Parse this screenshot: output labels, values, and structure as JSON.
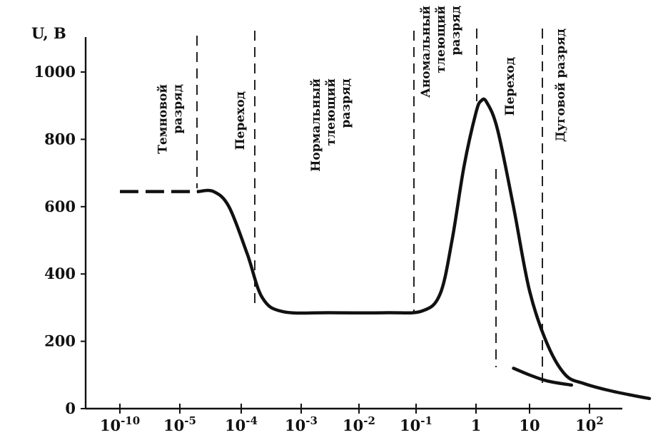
{
  "chart_data": {
    "type": "line",
    "title": "",
    "ylabel": "U, В",
    "xlabel": "",
    "ylim": [
      0,
      1000
    ],
    "xscale": "log",
    "grid": false,
    "legend": "none",
    "y_ticks": [
      {
        "value": 0,
        "label": "0"
      },
      {
        "value": 200,
        "label": "200"
      },
      {
        "value": 400,
        "label": "400"
      },
      {
        "value": 600,
        "label": "600"
      },
      {
        "value": 800,
        "label": "800"
      },
      {
        "value": 1000,
        "label": "1000"
      }
    ],
    "x_ticks": [
      {
        "base": "10",
        "exp": "-10"
      },
      {
        "base": "10",
        "exp": "-5"
      },
      {
        "base": "10",
        "exp": "-4"
      },
      {
        "base": "10",
        "exp": "-3"
      },
      {
        "base": "10",
        "exp": "-2"
      },
      {
        "base": "10",
        "exp": "-1"
      },
      {
        "base": "1",
        "exp": ""
      },
      {
        "base": "10",
        "exp": ""
      },
      {
        "base": "10",
        "exp": "2"
      }
    ],
    "regions": [
      {
        "lines": [
          "Темновой",
          "разряд"
        ]
      },
      {
        "lines": [
          "Переход"
        ]
      },
      {
        "lines": [
          "Нормальный",
          "тлеющий",
          "разряд"
        ]
      },
      {
        "lines": [
          "Аномальный",
          "тлеющий",
          "разряд"
        ]
      },
      {
        "lines": [
          "Переход"
        ]
      },
      {
        "lines": [
          "Дуговой разряд"
        ]
      }
    ],
    "series": [
      {
        "style": "dashed",
        "points": [
          [
            0,
            645
          ],
          [
            0.6,
            645
          ],
          [
            1.3,
            645
          ]
        ]
      },
      {
        "style": "solid",
        "points": [
          [
            1.3,
            645
          ],
          [
            1.55,
            645
          ],
          [
            1.8,
            600
          ],
          [
            2.1,
            460
          ],
          [
            2.35,
            330
          ],
          [
            2.7,
            288
          ],
          [
            3.5,
            285
          ],
          [
            4.5,
            285
          ],
          [
            5.1,
            290
          ],
          [
            5.4,
            340
          ],
          [
            5.6,
            500
          ],
          [
            5.8,
            720
          ],
          [
            6.0,
            880
          ],
          [
            6.1,
            915
          ],
          [
            6.2,
            910
          ],
          [
            6.4,
            830
          ],
          [
            6.7,
            600
          ],
          [
            7.0,
            350
          ],
          [
            7.3,
            190
          ],
          [
            7.6,
            100
          ],
          [
            7.9,
            75
          ],
          [
            8.3,
            55
          ],
          [
            8.7,
            40
          ],
          [
            9.0,
            30
          ]
        ]
      },
      {
        "style": "solid",
        "points": [
          [
            6.7,
            120
          ],
          [
            7.0,
            100
          ],
          [
            7.3,
            82
          ],
          [
            7.7,
            70
          ]
        ]
      }
    ]
  }
}
